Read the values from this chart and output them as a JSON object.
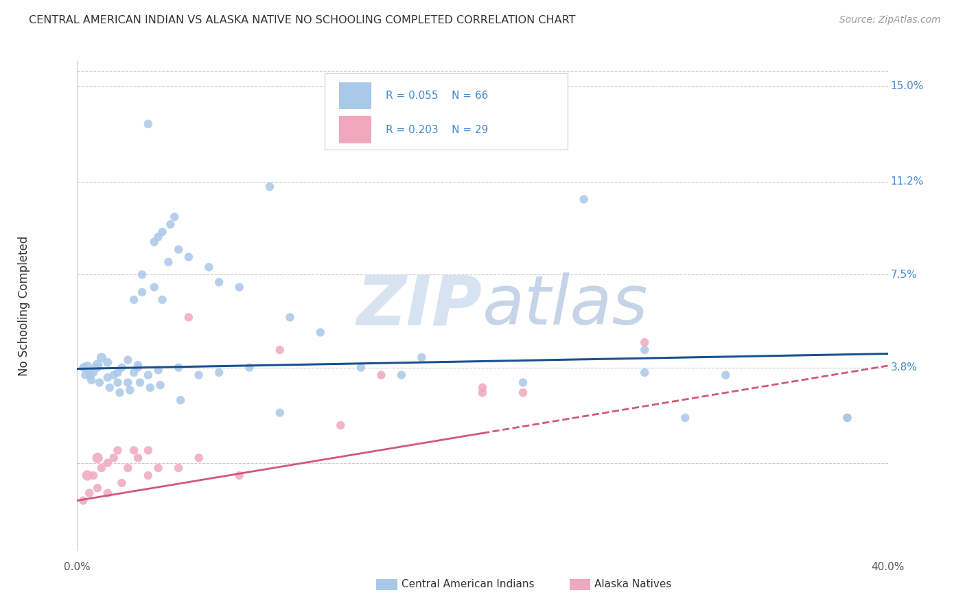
{
  "title": "CENTRAL AMERICAN INDIAN VS ALASKA NATIVE NO SCHOOLING COMPLETED CORRELATION CHART",
  "source": "Source: ZipAtlas.com",
  "ylabel": "No Schooling Completed",
  "xmin": 0.0,
  "xmax": 40.0,
  "ymin": -3.5,
  "ymax": 16.0,
  "ytick_vals": [
    0.0,
    3.8,
    7.5,
    11.2,
    15.0
  ],
  "ytick_labels": [
    "",
    "3.8%",
    "7.5%",
    "11.2%",
    "15.0%"
  ],
  "blue_R": "0.055",
  "blue_N": "66",
  "pink_R": "0.203",
  "pink_N": "29",
  "legend_label_blue": "Central American Indians",
  "legend_label_pink": "Alaska Natives",
  "blue_color": "#aac8e8",
  "pink_color": "#f0a8bc",
  "line_blue": "#1a5090",
  "line_pink": "#d05878",
  "blue_x": [
    3.5,
    4.2,
    4.8,
    5.0,
    4.0,
    3.8,
    4.6,
    3.2,
    4.5,
    5.5,
    6.5,
    7.0,
    8.0,
    25.0,
    0.5,
    1.0,
    1.2,
    1.5,
    1.8,
    2.0,
    2.2,
    2.5,
    2.8,
    3.0,
    0.3,
    0.6,
    0.8,
    1.0,
    1.5,
    2.0,
    2.5,
    3.0,
    3.5,
    4.0,
    5.0,
    6.0,
    7.0,
    8.5,
    10.5,
    12.0,
    14.0,
    17.0,
    22.0,
    28.0,
    0.4,
    0.7,
    1.1,
    1.6,
    2.1,
    2.6,
    3.1,
    3.6,
    4.1,
    5.1,
    10.0,
    16.0,
    30.0,
    38.0,
    2.8,
    3.2,
    3.8,
    4.2,
    9.5,
    28.0,
    32.0,
    38.0
  ],
  "blue_y": [
    13.5,
    9.2,
    9.8,
    8.5,
    9.0,
    8.8,
    9.5,
    7.5,
    8.0,
    8.2,
    7.8,
    7.2,
    7.0,
    10.5,
    3.8,
    3.9,
    4.2,
    4.0,
    3.5,
    3.2,
    3.8,
    4.1,
    3.6,
    3.9,
    3.8,
    3.5,
    3.6,
    3.8,
    3.4,
    3.6,
    3.2,
    3.8,
    3.5,
    3.7,
    3.8,
    3.5,
    3.6,
    3.8,
    5.8,
    5.2,
    3.8,
    4.2,
    3.2,
    4.5,
    3.5,
    3.3,
    3.2,
    3.0,
    2.8,
    2.9,
    3.2,
    3.0,
    3.1,
    2.5,
    2.0,
    3.5,
    1.8,
    1.8,
    6.5,
    6.8,
    7.0,
    6.5,
    11.0,
    3.6,
    3.5,
    1.8
  ],
  "blue_s": [
    80,
    80,
    80,
    80,
    80,
    80,
    80,
    80,
    80,
    80,
    80,
    80,
    80,
    80,
    150,
    120,
    100,
    90,
    80,
    80,
    80,
    80,
    80,
    80,
    80,
    80,
    80,
    80,
    80,
    80,
    80,
    80,
    80,
    80,
    80,
    80,
    80,
    80,
    80,
    80,
    80,
    80,
    80,
    80,
    80,
    80,
    80,
    80,
    80,
    80,
    80,
    80,
    80,
    80,
    80,
    80,
    80,
    80,
    80,
    80,
    80,
    80,
    80,
    80,
    80,
    80
  ],
  "pink_x": [
    0.5,
    1.0,
    1.5,
    2.0,
    2.5,
    3.0,
    3.5,
    4.0,
    5.0,
    6.0,
    8.0,
    13.0,
    20.0,
    28.0,
    0.8,
    1.2,
    1.8,
    2.8,
    15.0,
    22.0,
    0.3,
    0.6,
    1.0,
    1.5,
    2.2,
    3.5,
    5.5,
    10.0,
    20.0
  ],
  "pink_y": [
    -0.5,
    0.2,
    0.0,
    0.5,
    -0.2,
    0.2,
    0.5,
    -0.2,
    -0.2,
    0.2,
    -0.5,
    1.5,
    2.8,
    4.8,
    -0.5,
    -0.2,
    0.2,
    0.5,
    3.5,
    2.8,
    -1.5,
    -1.2,
    -1.0,
    -1.2,
    -0.8,
    -0.5,
    5.8,
    4.5,
    3.0
  ],
  "pink_s": [
    120,
    120,
    80,
    80,
    80,
    80,
    80,
    80,
    80,
    80,
    80,
    80,
    80,
    80,
    80,
    80,
    80,
    80,
    80,
    80,
    80,
    80,
    80,
    80,
    80,
    80,
    80,
    80,
    80
  ]
}
